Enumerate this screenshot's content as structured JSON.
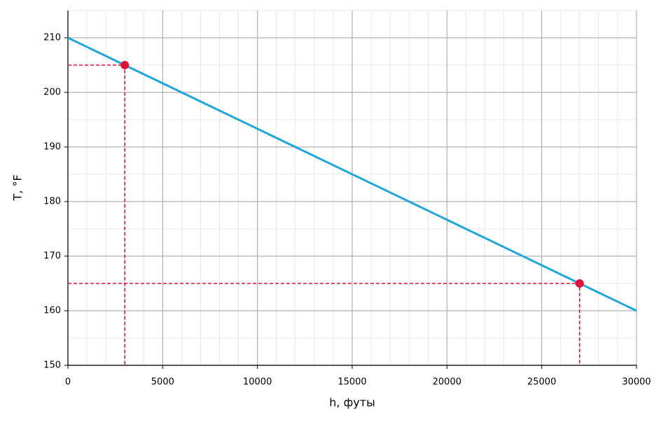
{
  "chart_data": {
    "type": "line",
    "x_label": "h, футы",
    "y_label": "T, °F",
    "xlim": [
      0,
      30000
    ],
    "ylim": [
      150,
      215
    ],
    "xticks": [
      0,
      5000,
      10000,
      15000,
      20000,
      25000,
      30000
    ],
    "yticks": [
      150,
      160,
      170,
      180,
      190,
      200,
      210
    ],
    "minor_xticks": [
      1000,
      2000,
      3000,
      4000,
      6000,
      7000,
      8000,
      9000,
      11000,
      12000,
      13000,
      14000,
      16000,
      17000,
      18000,
      19000,
      21000,
      22000,
      23000,
      24000,
      26000,
      27000,
      28000,
      29000
    ],
    "minor_yticks": [
      155,
      165,
      175,
      185,
      195,
      205,
      215
    ],
    "grid": true,
    "series": [
      {
        "x": [
          0,
          30000
        ],
        "values": [
          210,
          160
        ],
        "color": "#1fa7dc"
      }
    ],
    "points": {
      "x": [
        3000,
        27000
      ],
      "values": [
        205,
        165
      ],
      "color": "#dc143c"
    }
  }
}
